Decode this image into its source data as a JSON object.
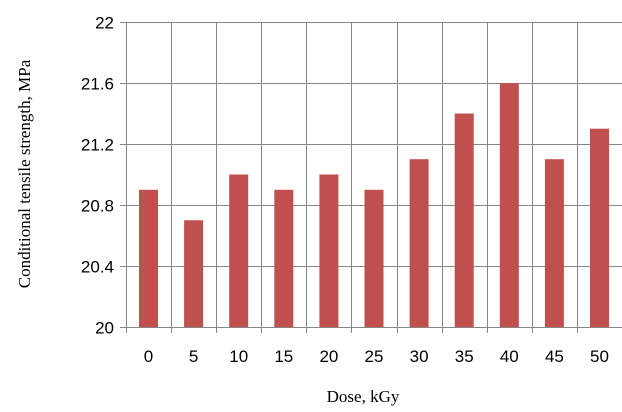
{
  "chart_data": {
    "type": "bar",
    "categories": [
      "0",
      "5",
      "10",
      "15",
      "20",
      "25",
      "30",
      "35",
      "40",
      "45",
      "50"
    ],
    "values": [
      20.9,
      20.7,
      21.0,
      20.9,
      21.0,
      20.9,
      21.1,
      21.4,
      21.6,
      21.1,
      21.3
    ],
    "title": "",
    "xlabel": "Dose, kGy",
    "ylabel": "Conditional tensile strength, MPa",
    "ylim": [
      20,
      22
    ],
    "yticks": [
      20,
      20.4,
      20.8,
      21.2,
      21.6,
      22
    ],
    "ytick_labels": [
      "20",
      "20.4",
      "20.8",
      "21.2",
      "21.6",
      "22"
    ],
    "grid": true,
    "legend": "none",
    "colors": {
      "bar": "#c0504d",
      "grid": "#868686",
      "axis": "#868686",
      "text": "#000000",
      "background": "#ffffff"
    }
  }
}
